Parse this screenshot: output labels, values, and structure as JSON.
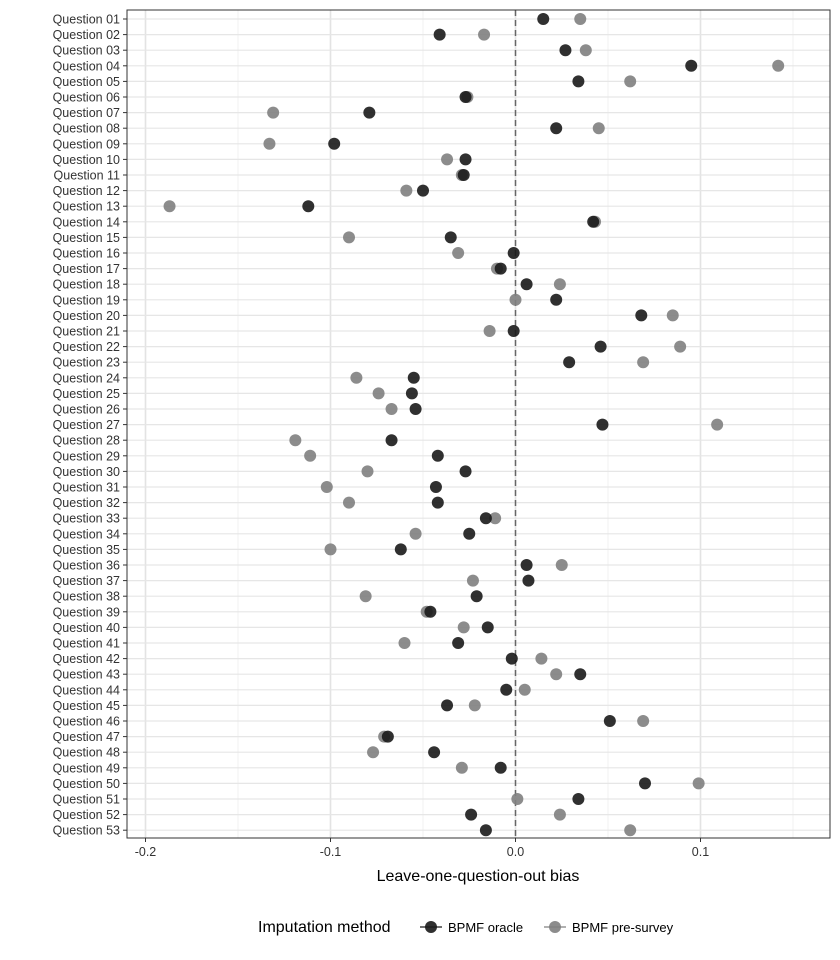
{
  "chart_data": {
    "type": "scatter",
    "xlabel": "Leave-one-question-out bias",
    "xlim": [
      -0.21,
      0.17
    ],
    "xticks": [
      -0.2,
      -0.1,
      0.0,
      0.1
    ],
    "xtick_labels": [
      "-0.2",
      "-0.1",
      "0.0",
      "0.1"
    ],
    "reference_line_x": 0.0,
    "grid": true,
    "legend_placement": "bottom",
    "legend_title": "Imputation method",
    "categories": [
      "Question 01",
      "Question 02",
      "Question 03",
      "Question 04",
      "Question 05",
      "Question 06",
      "Question 07",
      "Question 08",
      "Question 09",
      "Question 10",
      "Question 11",
      "Question 12",
      "Question 13",
      "Question 14",
      "Question 15",
      "Question 16",
      "Question 17",
      "Question 18",
      "Question 19",
      "Question 20",
      "Question 21",
      "Question 22",
      "Question 23",
      "Question 24",
      "Question 25",
      "Question 26",
      "Question 27",
      "Question 28",
      "Question 29",
      "Question 30",
      "Question 31",
      "Question 32",
      "Question 33",
      "Question 34",
      "Question 35",
      "Question 36",
      "Question 37",
      "Question 38",
      "Question 39",
      "Question 40",
      "Question 41",
      "Question 42",
      "Question 43",
      "Question 44",
      "Question 45",
      "Question 46",
      "Question 47",
      "Question 48",
      "Question 49",
      "Question 50",
      "Question 51",
      "Question 52",
      "Question 53"
    ],
    "series": [
      {
        "name": "BPMF oracle",
        "color": "#1a1a1a",
        "values": [
          0.015,
          -0.041,
          0.027,
          0.095,
          0.034,
          -0.027,
          -0.079,
          0.022,
          -0.098,
          -0.027,
          -0.028,
          -0.05,
          -0.112,
          0.042,
          -0.035,
          -0.001,
          -0.008,
          0.006,
          0.022,
          0.068,
          -0.001,
          0.046,
          0.029,
          -0.055,
          -0.056,
          -0.054,
          0.047,
          -0.067,
          -0.042,
          -0.027,
          -0.043,
          -0.042,
          -0.016,
          -0.025,
          -0.062,
          0.006,
          0.007,
          -0.021,
          -0.046,
          -0.015,
          -0.031,
          -0.002,
          0.035,
          -0.005,
          -0.037,
          0.051,
          -0.069,
          -0.044,
          -0.008,
          0.07,
          0.034,
          -0.024,
          -0.016
        ]
      },
      {
        "name": "BPMF pre-survey",
        "color": "#808080",
        "values": [
          0.035,
          -0.017,
          0.038,
          0.142,
          0.062,
          -0.026,
          -0.131,
          0.045,
          -0.133,
          -0.037,
          -0.029,
          -0.059,
          -0.187,
          0.043,
          -0.09,
          -0.031,
          -0.01,
          0.024,
          0.0,
          0.085,
          -0.014,
          0.089,
          0.069,
          -0.086,
          -0.074,
          -0.067,
          0.109,
          -0.119,
          -0.111,
          -0.08,
          -0.102,
          -0.09,
          -0.011,
          -0.054,
          -0.1,
          0.025,
          -0.023,
          -0.081,
          -0.048,
          -0.028,
          -0.06,
          0.014,
          0.022,
          0.005,
          -0.022,
          0.069,
          -0.071,
          -0.077,
          -0.029,
          0.099,
          0.001,
          0.024,
          0.062
        ]
      }
    ]
  }
}
